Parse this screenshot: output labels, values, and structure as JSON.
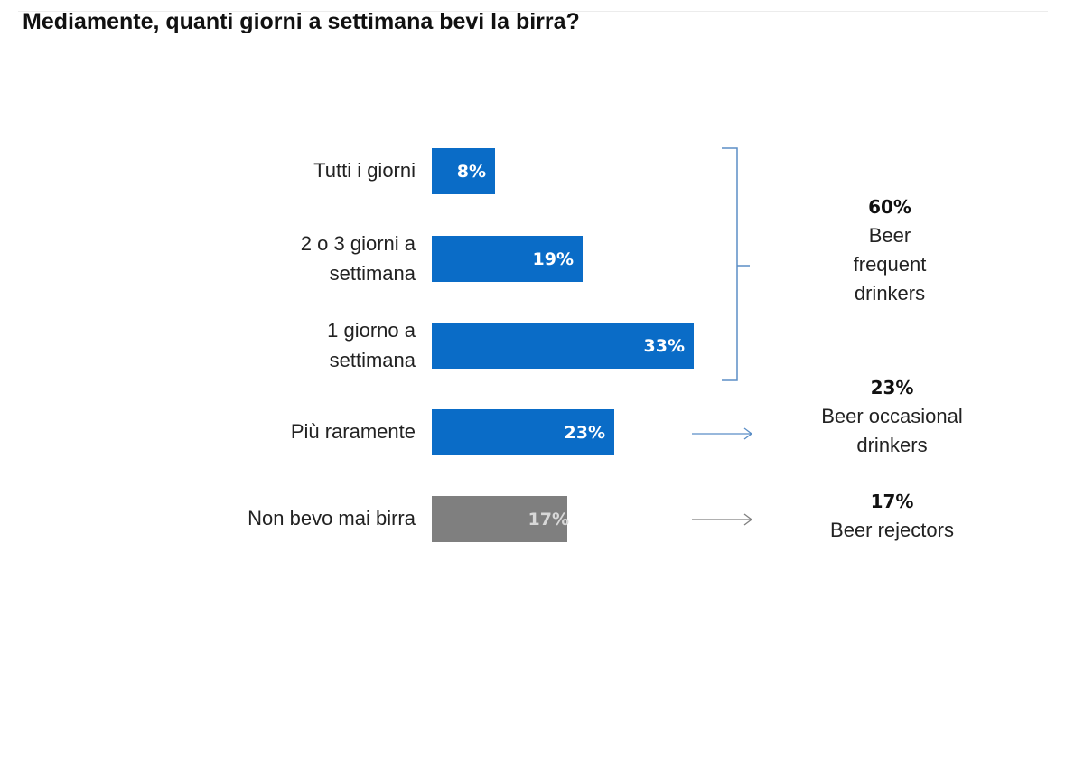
{
  "page": {
    "title": "Mediamente, quanti giorni a settimana bevi la birra?"
  },
  "chart_data": {
    "type": "bar",
    "orientation": "horizontal",
    "categories": [
      [
        "Tutti i giorni"
      ],
      [
        "2 o 3 giorni a",
        "settimana"
      ],
      [
        "1 giorno a",
        "settimana"
      ],
      [
        "Più raramente"
      ],
      [
        "Non bevo mai birra"
      ]
    ],
    "values": [
      8,
      19,
      33,
      23,
      17
    ],
    "value_labels": [
      "8%",
      "19%",
      "33%",
      "23%",
      "17%"
    ],
    "bar_colors": [
      "#0a6cc7",
      "#0a6cc7",
      "#0a6cc7",
      "#0a6cc7",
      "#7f7f7f"
    ],
    "groups": [
      {
        "percent": "60%",
        "label": [
          "Beer",
          "frequent",
          "drinkers"
        ],
        "connector": "bracket"
      },
      {
        "percent": "23%",
        "label": [
          "Beer occasional",
          "drinkers"
        ],
        "connector": "arrow"
      },
      {
        "percent": "17%",
        "label": [
          "Beer rejectors"
        ],
        "connector": "arrow"
      }
    ],
    "connector_color": "#5b8ec6"
  }
}
